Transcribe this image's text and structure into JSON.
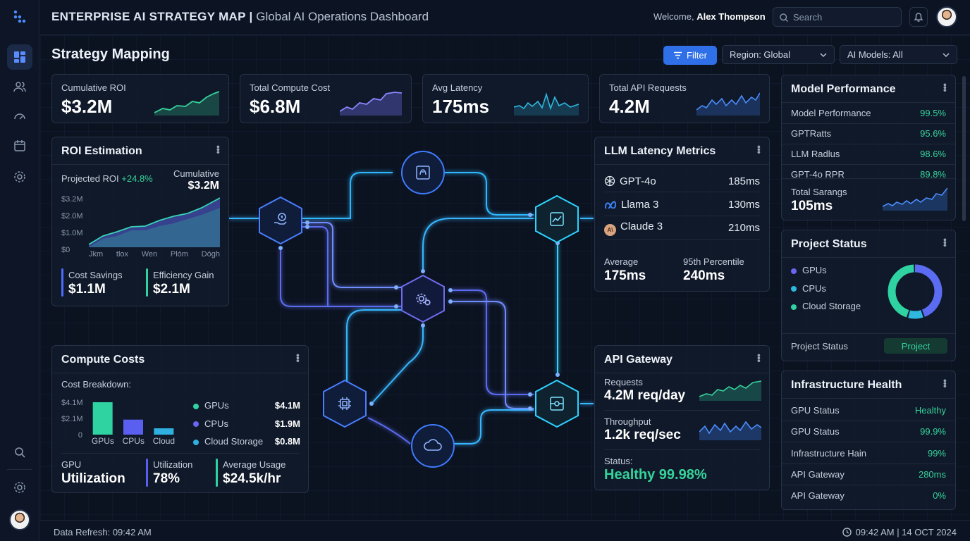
{
  "app": {
    "brand": "ENTERPRISE AI STRATEGY MAP",
    "separator": "|",
    "subtitle": "Global AI Operations Dashboard"
  },
  "header": {
    "welcome_prefix": "Welcome,",
    "user_name": "Alex Thompson",
    "search_placeholder": "Search"
  },
  "page": {
    "title": "Strategy Mapping"
  },
  "toolbar": {
    "filter_label": "Filter",
    "region_select": "Region: Global",
    "models_select": "AI Models: All"
  },
  "kpis": [
    {
      "label": "Cumulative ROI",
      "value": "$3.2M",
      "spark_color": "#35d39b"
    },
    {
      "label": "Total Compute Cost",
      "value": "$6.8M",
      "spark_color": "#6f6cf0"
    },
    {
      "label": "Avg Latency",
      "value": "175ms",
      "spark_color": "#2fb7e0"
    },
    {
      "label": "Total API Requests",
      "value": "4.2M",
      "spark_color": "#3b82f6"
    }
  ],
  "roi": {
    "title": "ROI Estimation",
    "projected_label": "Projected ROI",
    "projected_delta": "+24.8%",
    "cumulative_label": "Cumulative",
    "cumulative_value": "$3.2M",
    "y_ticks": [
      "$3.2M",
      "$2.0M",
      "$1.0M",
      "$0"
    ],
    "x_ticks": [
      "Jkm",
      "tlox",
      "Wen",
      "Plóm",
      "Dógh"
    ],
    "cost_savings_label": "Cost Savings",
    "cost_savings_value": "$1.1M",
    "efficiency_label": "Efficiency Gain",
    "efficiency_value": "$2.1M"
  },
  "compute": {
    "title": "Compute Costs",
    "breakdown_label": "Cost Breakdown:",
    "y_ticks": [
      "$4.1M",
      "$2.1M",
      "0"
    ],
    "bars": [
      {
        "label": "GPUs",
        "value": 4.1,
        "color": "#2fd3a2"
      },
      {
        "label": "CPUs",
        "value": 1.9,
        "color": "#5b5ff0"
      },
      {
        "label": "Cloud",
        "value": 0.8,
        "color": "#2fb0e0"
      }
    ],
    "legend": [
      {
        "name": "GPUs",
        "value": "$4.1M",
        "color": "#2fd3a2"
      },
      {
        "name": "CPUs",
        "value": "$1.9M",
        "color": "#6a66f2"
      },
      {
        "name": "Cloud Storage",
        "value": "$0.8M",
        "color": "#2fb0e0"
      }
    ],
    "gpu_label": "GPU",
    "gpu_value": "Utilization",
    "util_label": "Utilization",
    "util_value": "78%",
    "avg_label": "Average Usage",
    "avg_value": "$24.5k/hr"
  },
  "llm": {
    "title": "LLM Latency Metrics",
    "models": [
      {
        "name": "GPT-4o",
        "value": "185ms"
      },
      {
        "name": "Llama 3",
        "value": "130ms"
      },
      {
        "name": "Claude 3",
        "value": "210ms"
      }
    ],
    "avg_label": "Average",
    "avg_value": "175ms",
    "p95_label": "95th Percentile",
    "p95_value": "240ms"
  },
  "api": {
    "title": "API Gateway",
    "requests_label": "Requests",
    "requests_value": "4.2M req/day",
    "throughput_label": "Throughput",
    "throughput_value": "1.2k req/sec",
    "status_label": "Status:",
    "status_value": "Healthy 99.98%"
  },
  "model_perf": {
    "title": "Model Performance",
    "rows": [
      {
        "name": "Model Performance",
        "value": "99.5%"
      },
      {
        "name": "GPTRatts",
        "value": "95.6%"
      },
      {
        "name": "LLM Radlus",
        "value": "98.6%"
      },
      {
        "name": "GPT-4o RPR",
        "value": "89.8%"
      }
    ],
    "total_label": "Total Sarangs",
    "total_value": "105ms"
  },
  "project": {
    "title": "Project Status",
    "legend": [
      {
        "name": "GPUs",
        "color": "#6a66f2"
      },
      {
        "name": "CPUs",
        "color": "#2fb7e0"
      },
      {
        "name": "Cloud Storage",
        "color": "#2fd3a2"
      }
    ],
    "donut": [
      {
        "name": "GPUs",
        "share": 0.45,
        "color": "#5b6cf2"
      },
      {
        "name": "CPUs",
        "share": 0.1,
        "color": "#2fb7e0"
      },
      {
        "name": "Cloud Storage",
        "share": 0.45,
        "color": "#2fd3a2"
      }
    ],
    "status_label": "Project Status",
    "status_badge": "Project"
  },
  "infra": {
    "title": "Infrastructure Health",
    "rows": [
      {
        "name": "GPU Status",
        "value": "Healthy"
      },
      {
        "name": "GPU Status",
        "value": "99.9%"
      },
      {
        "name": "Infrastructure Hain",
        "value": "99%"
      },
      {
        "name": "API Gateway",
        "value": "280ms"
      },
      {
        "name": "API Gateway",
        "value": "0%"
      }
    ]
  },
  "footer": {
    "refresh": "Data Refresh: 09:42 AM",
    "datetime": "09:42 AM | 14 OCT 2024"
  },
  "icons": [
    "logo-icon",
    "dashboard-icon",
    "users-icon",
    "gauge-icon",
    "calendar-icon",
    "settings-icon",
    "search-icon",
    "bell-icon",
    "filter-icon",
    "chevron-down-icon",
    "dollar-hand-icon",
    "brain-icon",
    "chart-icon",
    "gear-icon",
    "chip-icon",
    "cloud-icon",
    "hub-icon",
    "clock-icon"
  ]
}
